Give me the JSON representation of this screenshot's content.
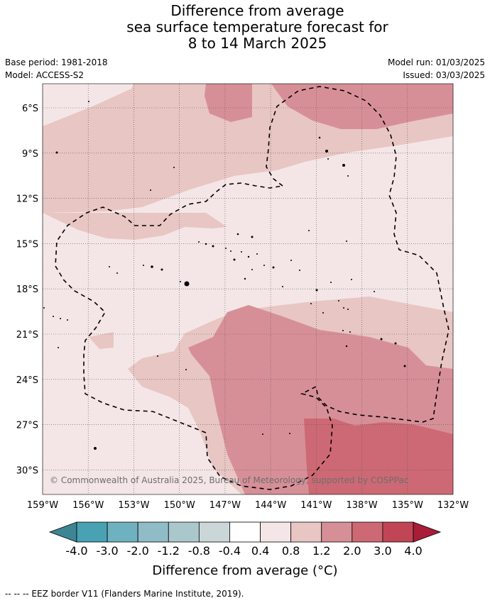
{
  "title": {
    "line1": "Difference from average",
    "line2": "sea surface temperature forecast for",
    "line3": "8 to 14 March 2025"
  },
  "meta": {
    "base_period": "Base period: 1981-2018",
    "model": "Model: ACCESS-S2",
    "model_run": "Model run: 01/03/2025",
    "issued": "Issued: 03/03/2025"
  },
  "map": {
    "lon_labels": [
      "159°W",
      "156°W",
      "153°W",
      "150°W",
      "147°W",
      "144°W",
      "141°W",
      "138°W",
      "135°W",
      "132°W"
    ],
    "lat_labels": [
      "6°S",
      "9°S",
      "12°S",
      "15°S",
      "18°S",
      "21°S",
      "24°S",
      "27°S",
      "30°S"
    ],
    "copyright": "© Commonwealth of Australia 2025, Bureau of Meteorology, supported by COSPPac"
  },
  "colorbar": {
    "ticks": [
      "-4.0",
      "-3.0",
      "-2.0",
      "-1.2",
      "-0.8",
      "-0.4",
      "0.4",
      "0.8",
      "1.2",
      "2.0",
      "3.0",
      "4.0"
    ],
    "colors": {
      "extend_low": "#3e8594",
      "bins": [
        "#48a2b3",
        "#6fb1be",
        "#8fbcc6",
        "#aac8cc",
        "#cbd6d8",
        "#ffffff",
        "#f4e6e6",
        "#e8c6c3",
        "#d78f97",
        "#cd6974",
        "#c04656"
      ],
      "extend_high": "#a81d38"
    },
    "unit_label": "Difference from average (°C)"
  },
  "legend": {
    "eez": "--  --  -- EEZ border V11 (Flanders Marine Institute, 2019)."
  }
}
